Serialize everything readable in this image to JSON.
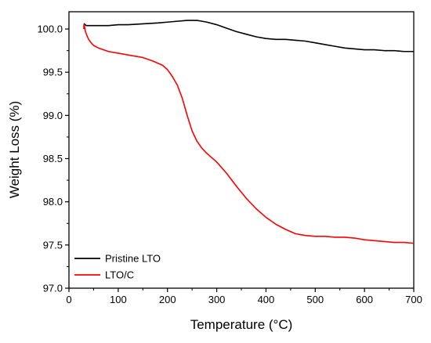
{
  "chart_data": {
    "type": "line",
    "title": "",
    "xlabel": "Temperature (°C)",
    "ylabel": "Weight Loss (%)",
    "xlim": [
      0,
      700
    ],
    "ylim": [
      97.0,
      100.2
    ],
    "xticks": [
      0,
      100,
      200,
      300,
      400,
      500,
      600,
      700
    ],
    "yticks": [
      97.0,
      97.5,
      98.0,
      98.5,
      99.0,
      99.5,
      100.0
    ],
    "grid": false,
    "legend_position": "bottom-left",
    "series": [
      {
        "name": "Pristine LTO",
        "color": "#000000",
        "x": [
          30,
          31,
          33,
          35,
          40,
          50,
          60,
          80,
          100,
          120,
          150,
          180,
          200,
          220,
          240,
          260,
          270,
          280,
          300,
          320,
          340,
          360,
          380,
          400,
          420,
          440,
          460,
          480,
          500,
          520,
          540,
          560,
          580,
          600,
          620,
          640,
          660,
          680,
          700
        ],
        "y": [
          100.02,
          100.06,
          100.05,
          100.04,
          100.04,
          100.04,
          100.04,
          100.04,
          100.05,
          100.05,
          100.06,
          100.07,
          100.08,
          100.09,
          100.1,
          100.1,
          100.09,
          100.08,
          100.05,
          100.01,
          99.97,
          99.94,
          99.91,
          99.89,
          99.88,
          99.88,
          99.87,
          99.86,
          99.84,
          99.82,
          99.8,
          99.78,
          99.77,
          99.76,
          99.76,
          99.75,
          99.75,
          99.74,
          99.74
        ]
      },
      {
        "name": "LTO/C",
        "color": "#ff0000",
        "x": [
          30,
          31,
          33,
          36,
          40,
          45,
          50,
          60,
          70,
          80,
          100,
          120,
          150,
          170,
          190,
          200,
          210,
          220,
          230,
          240,
          250,
          260,
          270,
          280,
          300,
          320,
          340,
          360,
          380,
          400,
          420,
          440,
          460,
          480,
          500,
          520,
          540,
          560,
          580,
          600,
          620,
          640,
          660,
          680,
          700
        ],
        "y": [
          100.0,
          100.05,
          99.98,
          99.93,
          99.88,
          99.84,
          99.81,
          99.78,
          99.76,
          99.74,
          99.72,
          99.7,
          99.67,
          99.63,
          99.58,
          99.53,
          99.45,
          99.35,
          99.2,
          99.0,
          98.82,
          98.7,
          98.62,
          98.56,
          98.46,
          98.33,
          98.18,
          98.04,
          97.92,
          97.82,
          97.74,
          97.68,
          97.63,
          97.61,
          97.6,
          97.6,
          97.59,
          97.59,
          97.58,
          97.56,
          97.55,
          97.54,
          97.53,
          97.53,
          97.52
        ]
      }
    ]
  }
}
